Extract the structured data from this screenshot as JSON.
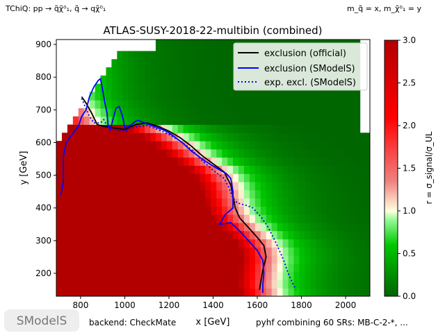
{
  "header": {
    "process_label": "TChiQ: pp → q̃χ̃⁰₁, q̃ → qχ̃⁰₁",
    "mass_label": "m_q̃ = x, m_χ̃⁰₁ = y"
  },
  "footer": {
    "logo_text": "SModelS",
    "backend": "backend: CheckMate",
    "combination": "pyhf combining 60 SRs: MB-C-2-*, ..."
  },
  "colors": {
    "official": "#000000",
    "smodels": "#0000ff",
    "expected": "#0000ff",
    "cmap": [
      "#006400",
      "#00c800",
      "#98fb98",
      "#ffffe0",
      "#f08080",
      "#ff0000",
      "#b20000"
    ]
  },
  "chart_data": {
    "type": "heatmap",
    "title": "ATLAS-SUSY-2018-22-multibin (combined)",
    "xlabel": "x [GeV]",
    "ylabel": "y [GeV]",
    "xlim": [
      690,
      2110
    ],
    "ylim": [
      130,
      915
    ],
    "x_ticks": [
      800,
      1000,
      1200,
      1400,
      1600,
      1800,
      2000
    ],
    "y_ticks": [
      200,
      300,
      400,
      500,
      600,
      700,
      800,
      900
    ],
    "colorbar": {
      "label": "r = σ_signal/σ_UL",
      "range": [
        0.0,
        3.0
      ],
      "ticks": [
        "0.0",
        "0.5",
        "1.0",
        "1.5",
        "2.0",
        "2.5",
        "3.0"
      ]
    },
    "legend": {
      "placement": "top-right",
      "entries": [
        {
          "label": "exclusion (official)",
          "style": "solid",
          "color": "#000000"
        },
        {
          "label": "exclusion (SModelS)",
          "style": "solid",
          "color": "#0000ff"
        },
        {
          "label": "exp. excl. (SModelS)",
          "style": "dotted",
          "color": "#0000ff"
        }
      ]
    },
    "series": [
      {
        "name": "exclusion (official)",
        "points": [
          [
            805,
            740
          ],
          [
            825,
            720
          ],
          [
            850,
            690
          ],
          [
            875,
            655
          ],
          [
            900,
            650
          ],
          [
            950,
            645
          ],
          [
            1000,
            640
          ],
          [
            1050,
            655
          ],
          [
            1100,
            660
          ],
          [
            1150,
            650
          ],
          [
            1200,
            635
          ],
          [
            1250,
            615
          ],
          [
            1300,
            590
          ],
          [
            1350,
            560
          ],
          [
            1400,
            535
          ],
          [
            1450,
            510
          ],
          [
            1480,
            470
          ],
          [
            1495,
            420
          ],
          [
            1500,
            400
          ],
          [
            1520,
            370
          ],
          [
            1560,
            340
          ],
          [
            1600,
            310
          ],
          [
            1630,
            285
          ],
          [
            1640,
            250
          ],
          [
            1625,
            210
          ],
          [
            1615,
            170
          ],
          [
            1610,
            150
          ]
        ]
      },
      {
        "name": "exclusion (SModelS)",
        "points": [
          [
            710,
            440
          ],
          [
            722,
            480
          ],
          [
            722,
            560
          ],
          [
            735,
            600
          ],
          [
            755,
            620
          ],
          [
            790,
            650
          ],
          [
            805,
            680
          ],
          [
            825,
            700
          ],
          [
            840,
            740
          ],
          [
            860,
            770
          ],
          [
            880,
            790
          ],
          [
            890,
            795
          ],
          [
            900,
            760
          ],
          [
            910,
            720
          ],
          [
            920,
            690
          ],
          [
            925,
            650
          ],
          [
            935,
            640
          ],
          [
            950,
            680
          ],
          [
            960,
            705
          ],
          [
            975,
            710
          ],
          [
            990,
            680
          ],
          [
            1000,
            645
          ],
          [
            1020,
            650
          ],
          [
            1050,
            665
          ],
          [
            1060,
            668
          ],
          [
            1090,
            660
          ],
          [
            1130,
            650
          ],
          [
            1170,
            640
          ],
          [
            1200,
            630
          ],
          [
            1230,
            615
          ],
          [
            1260,
            600
          ],
          [
            1300,
            575
          ],
          [
            1360,
            545
          ],
          [
            1420,
            520
          ],
          [
            1460,
            505
          ],
          [
            1480,
            490
          ],
          [
            1490,
            450
          ],
          [
            1490,
            400
          ],
          [
            1455,
            380
          ],
          [
            1430,
            350
          ],
          [
            1480,
            355
          ],
          [
            1520,
            330
          ],
          [
            1560,
            300
          ],
          [
            1600,
            270
          ],
          [
            1625,
            240
          ],
          [
            1630,
            200
          ],
          [
            1625,
            165
          ],
          [
            1625,
            140
          ]
        ]
      },
      {
        "name": "exp. excl. (SModelS)",
        "points": [
          [
            805,
            735
          ],
          [
            820,
            710
          ],
          [
            840,
            680
          ],
          [
            860,
            660
          ],
          [
            890,
            660
          ],
          [
            905,
            670
          ],
          [
            920,
            650
          ],
          [
            950,
            640
          ],
          [
            1000,
            635
          ],
          [
            1050,
            648
          ],
          [
            1100,
            652
          ],
          [
            1150,
            640
          ],
          [
            1200,
            625
          ],
          [
            1250,
            605
          ],
          [
            1300,
            580
          ],
          [
            1350,
            545
          ],
          [
            1400,
            515
          ],
          [
            1450,
            490
          ],
          [
            1470,
            465
          ],
          [
            1490,
            430
          ],
          [
            1510,
            415
          ],
          [
            1550,
            408
          ],
          [
            1580,
            400
          ],
          [
            1620,
            370
          ],
          [
            1650,
            340
          ],
          [
            1680,
            300
          ],
          [
            1700,
            270
          ],
          [
            1720,
            240
          ],
          [
            1740,
            200
          ],
          [
            1760,
            170
          ],
          [
            1775,
            150
          ]
        ]
      }
    ]
  }
}
